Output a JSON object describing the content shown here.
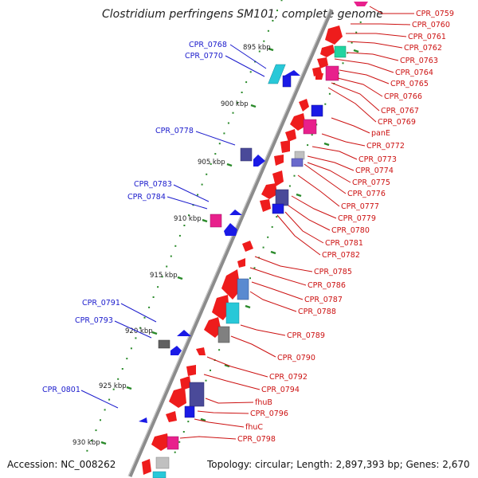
{
  "title": "Clostridium perfringens SM101, complete genome",
  "footer": {
    "accession": "Accession: NC_008262",
    "summary": "Topology: circular; Length: 2,897,393 bp; Genes: 2,670"
  },
  "colors": {
    "backbone": "#8c8c8c",
    "left_label": "#1a1acc",
    "right_label": "#cc1111",
    "tick_dot": "#2a8a2a",
    "feature_red": "#ee1c1c",
    "feature_blue": "#1a1ae6",
    "feature_pink": "#e8208c",
    "feature_cyan": "#28c8d8",
    "feature_navy": "#4a4a99",
    "feature_gray": "#808080"
  },
  "scale_labels": [
    "895 kbp",
    "900 kbp",
    "905 kbp",
    "910 kbp",
    "915 kbp",
    "920 kbp",
    "925 kbp",
    "930 kbp"
  ],
  "left_labels": [
    "CPR_0768",
    "CPR_0770",
    "CPR_0778",
    "CPR_0783",
    "CPR_0784",
    "CPR_0791",
    "CPR_0793",
    "CPR_0801"
  ],
  "right_labels": [
    "CPR_0759",
    "CPR_0760",
    "CPR_0761",
    "CPR_0762",
    "CPR_0763",
    "CPR_0764",
    "CPR_0765",
    "CPR_0766",
    "CPR_0767",
    "CPR_0769",
    "panE",
    "CPR_0772",
    "CPR_0773",
    "CPR_0774",
    "CPR_0775",
    "CPR_0776",
    "CPR_0777",
    "CPR_0779",
    "CPR_0780",
    "CPR_0781",
    "CPR_0782",
    "CPR_0785",
    "CPR_0786",
    "CPR_0787",
    "CPR_0788",
    "CPR_0789",
    "CPR_0790",
    "CPR_0792",
    "CPR_0794",
    "fhuB",
    "CPR_0796",
    "fhuC",
    "CPR_0798"
  ]
}
